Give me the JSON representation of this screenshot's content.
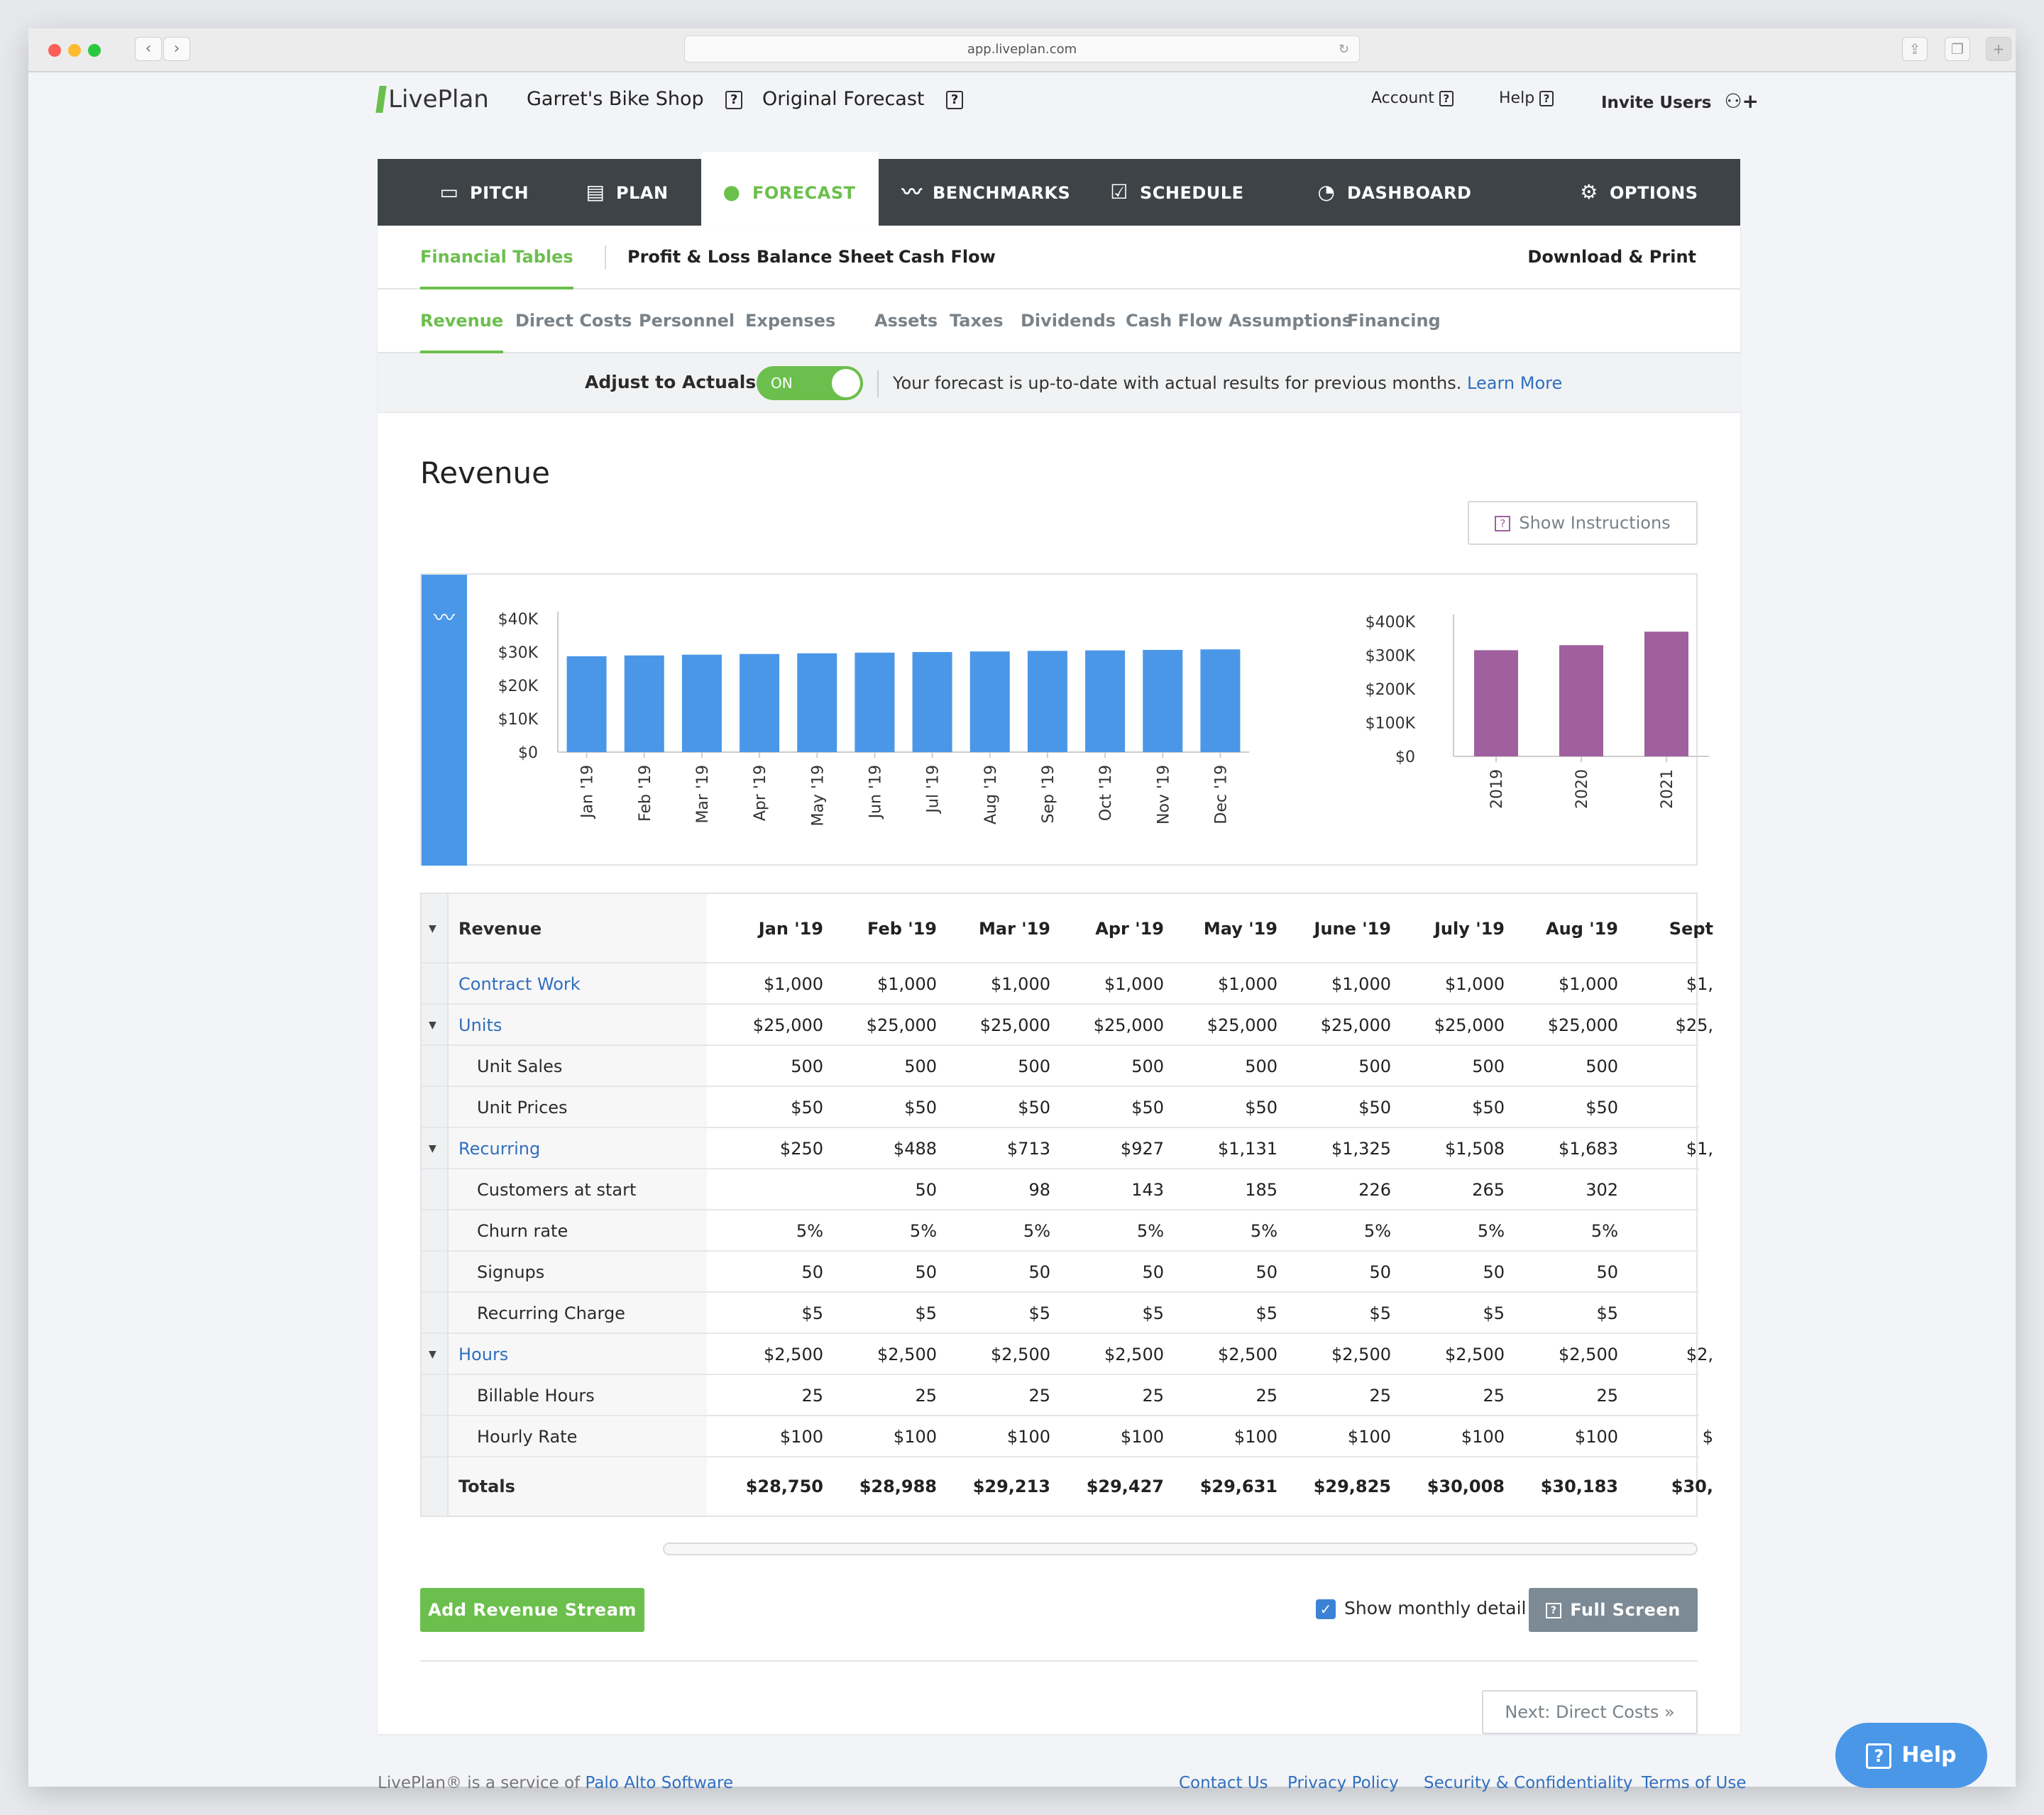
{
  "browser": {
    "url": "app.liveplan.com"
  },
  "header": {
    "logo": "LivePlan",
    "company": "Garret's Bike Shop",
    "forecast": "Original Forecast",
    "account": "Account",
    "help": "Help",
    "invite": "Invite Users"
  },
  "mainnav": [
    {
      "label": "PITCH",
      "icon": "monitor-icon"
    },
    {
      "label": "PLAN",
      "icon": "document-icon"
    },
    {
      "label": "FORECAST",
      "icon": "piggy-bank-icon"
    },
    {
      "label": "BENCHMARKS",
      "icon": "trend-icon"
    },
    {
      "label": "SCHEDULE",
      "icon": "checkbox-icon"
    },
    {
      "label": "DASHBOARD",
      "icon": "gauge-icon"
    },
    {
      "label": "OPTIONS",
      "icon": "gear-icon"
    }
  ],
  "subnav": {
    "financial_tables": "Financial Tables",
    "profit_loss": "Profit & Loss",
    "balance_sheet": "Balance Sheet",
    "cash_flow": "Cash Flow",
    "download": "Download & Print"
  },
  "tabs": [
    "Revenue",
    "Direct Costs",
    "Personnel",
    "Expenses",
    "Assets",
    "Taxes",
    "Dividends",
    "Cash Flow Assumptions",
    "Financing"
  ],
  "adjust": {
    "label": "Adjust to Actuals",
    "toggle": "ON",
    "message": "Your forecast is up-to-date with actual results for previous months.",
    "learn_more": "Learn More"
  },
  "section": {
    "title": "Revenue",
    "show_instructions": "Show Instructions"
  },
  "chart_data": [
    {
      "type": "bar",
      "categories": [
        "Jan '19",
        "Feb '19",
        "Mar '19",
        "Apr '19",
        "May '19",
        "Jun '19",
        "Jul '19",
        "Aug '19",
        "Sep '19",
        "Oct '19",
        "Nov '19",
        "Dec '19"
      ],
      "values": [
        28750,
        28988,
        29213,
        29427,
        29631,
        29825,
        30008,
        30183,
        30350,
        30500,
        30650,
        30800
      ],
      "yticks": [
        "$40K",
        "$30K",
        "$20K",
        "$10K",
        "$0"
      ],
      "ylim": [
        0,
        40000
      ],
      "color": "#4a97e8"
    },
    {
      "type": "bar",
      "categories": [
        "2019",
        "2020",
        "2021"
      ],
      "values": [
        315000,
        330000,
        370000
      ],
      "yticks": [
        "$400K",
        "$300K",
        "$200K",
        "$100K",
        "$0"
      ],
      "ylim": [
        0,
        400000
      ],
      "color": "#a0609e"
    }
  ],
  "table": {
    "header": "Revenue",
    "columns": [
      "Jan '19",
      "Feb '19",
      "Mar '19",
      "Apr '19",
      "May '19",
      "June '19",
      "July '19",
      "Aug '19",
      "Sept"
    ],
    "rows": [
      {
        "label": "Contract Work",
        "kind": "link",
        "values": [
          "$1,000",
          "$1,000",
          "$1,000",
          "$1,000",
          "$1,000",
          "$1,000",
          "$1,000",
          "$1,000",
          "$1,"
        ]
      },
      {
        "label": "Units",
        "kind": "group",
        "values": [
          "$25,000",
          "$25,000",
          "$25,000",
          "$25,000",
          "$25,000",
          "$25,000",
          "$25,000",
          "$25,000",
          "$25,"
        ]
      },
      {
        "label": "Unit Sales",
        "kind": "sub",
        "values": [
          "500",
          "500",
          "500",
          "500",
          "500",
          "500",
          "500",
          "500",
          ""
        ]
      },
      {
        "label": "Unit Prices",
        "kind": "sub",
        "values": [
          "$50",
          "$50",
          "$50",
          "$50",
          "$50",
          "$50",
          "$50",
          "$50",
          ""
        ]
      },
      {
        "label": "Recurring",
        "kind": "group",
        "values": [
          "$250",
          "$488",
          "$713",
          "$927",
          "$1,131",
          "$1,325",
          "$1,508",
          "$1,683",
          "$1,"
        ]
      },
      {
        "label": "Customers at start",
        "kind": "sub",
        "values": [
          "",
          "50",
          "98",
          "143",
          "185",
          "226",
          "265",
          "302",
          ""
        ]
      },
      {
        "label": "Churn rate",
        "kind": "sub",
        "values": [
          "5%",
          "5%",
          "5%",
          "5%",
          "5%",
          "5%",
          "5%",
          "5%",
          ""
        ]
      },
      {
        "label": "Signups",
        "kind": "sub",
        "values": [
          "50",
          "50",
          "50",
          "50",
          "50",
          "50",
          "50",
          "50",
          ""
        ]
      },
      {
        "label": "Recurring Charge",
        "kind": "sub",
        "values": [
          "$5",
          "$5",
          "$5",
          "$5",
          "$5",
          "$5",
          "$5",
          "$5",
          ""
        ]
      },
      {
        "label": "Hours",
        "kind": "group",
        "values": [
          "$2,500",
          "$2,500",
          "$2,500",
          "$2,500",
          "$2,500",
          "$2,500",
          "$2,500",
          "$2,500",
          "$2,"
        ]
      },
      {
        "label": "Billable Hours",
        "kind": "sub",
        "values": [
          "25",
          "25",
          "25",
          "25",
          "25",
          "25",
          "25",
          "25",
          ""
        ]
      },
      {
        "label": "Hourly Rate",
        "kind": "sub",
        "values": [
          "$100",
          "$100",
          "$100",
          "$100",
          "$100",
          "$100",
          "$100",
          "$100",
          "$"
        ]
      }
    ],
    "totals": {
      "label": "Totals",
      "values": [
        "$28,750",
        "$28,988",
        "$29,213",
        "$29,427",
        "$29,631",
        "$29,825",
        "$30,008",
        "$30,183",
        "$30,"
      ]
    }
  },
  "actions": {
    "add_stream": "Add Revenue Stream",
    "show_monthly": "Show monthly detail",
    "full_screen": "Full Screen",
    "next": "Next: Direct Costs »"
  },
  "footer": {
    "service_text": "LivePlan® is a service of",
    "company": "Palo Alto Software",
    "links": [
      "Contact Us",
      "Privacy Policy",
      "Security & Confidentiality",
      "Terms of Use"
    ]
  },
  "help_button": "Help"
}
